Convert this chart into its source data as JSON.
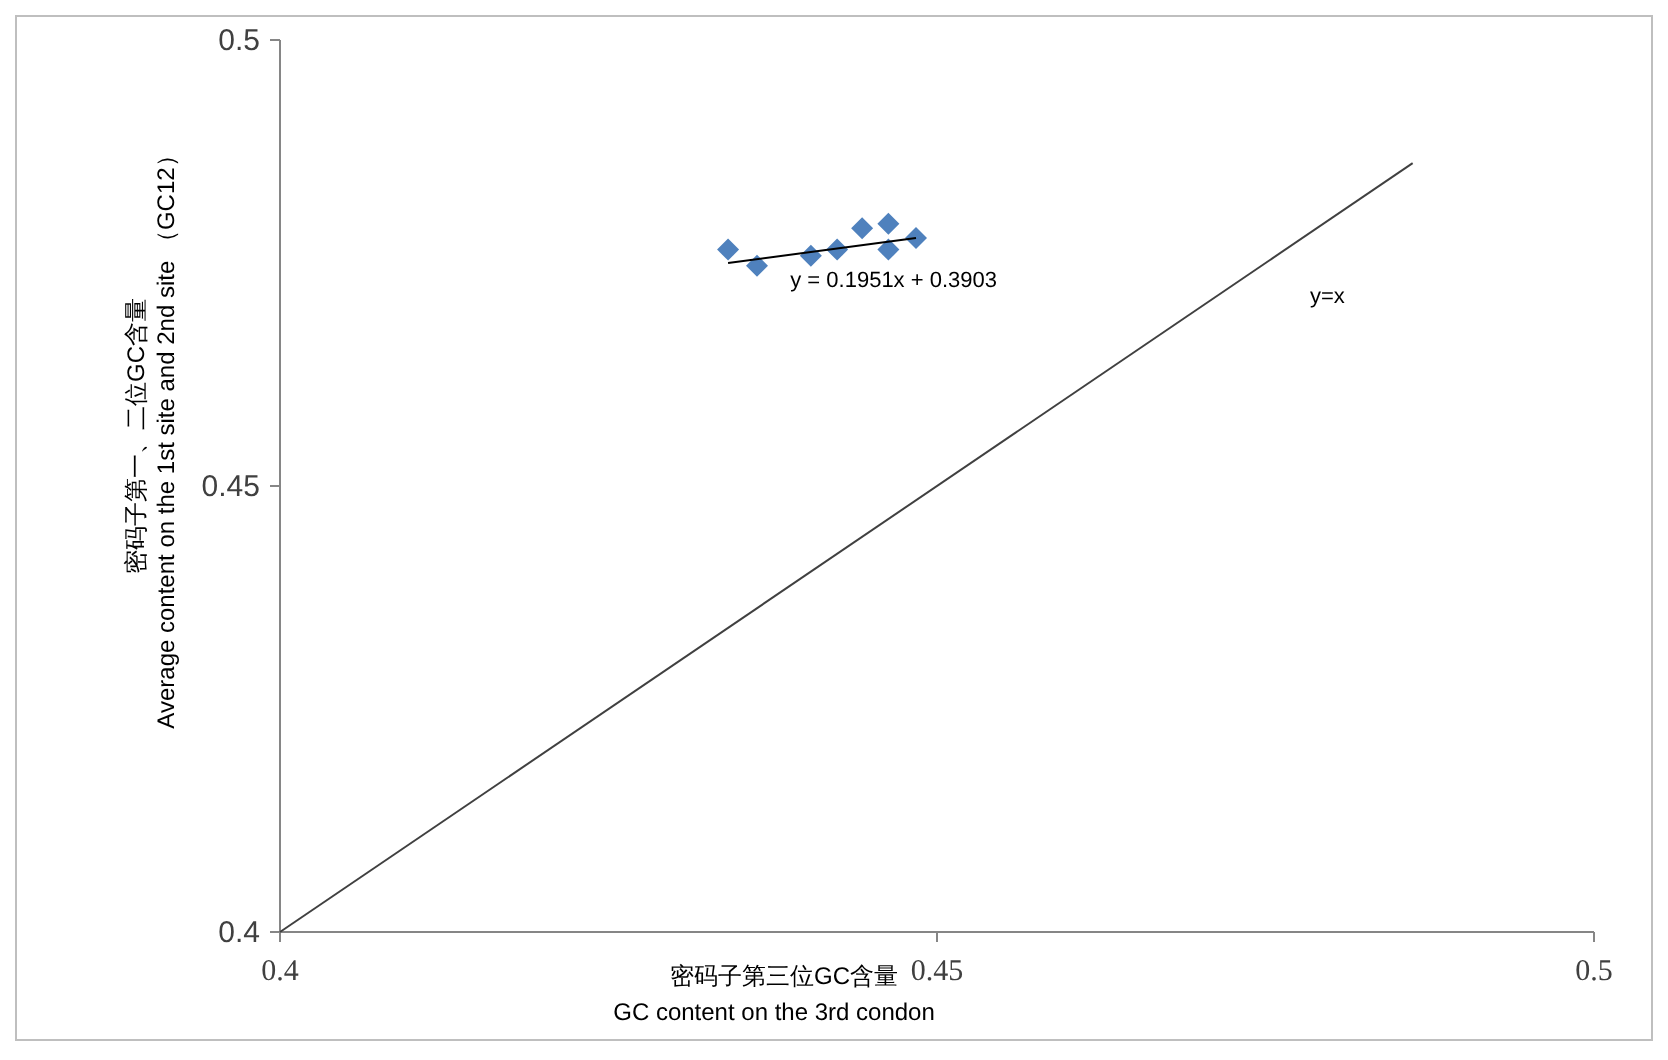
{
  "chart_data": {
    "type": "scatter",
    "xlabel": "密码子第三位GC含量\nGC content on the 3rd condon",
    "ylabel": "密码子第一、二位GC含量\nAverage content on the 1st site and 2nd site （GC12）",
    "xlim": [
      0.4,
      0.5
    ],
    "ylim": [
      0.4,
      0.5
    ],
    "xticks": [
      0.4,
      0.45,
      0.5
    ],
    "yticks": [
      0.4,
      0.45,
      0.5
    ],
    "grid": false,
    "series": [
      {
        "type": "scatter",
        "marker": "diamond",
        "color": "#4f81bd",
        "x": [
          0.4341,
          0.4363,
          0.4404,
          0.4424,
          0.4443,
          0.4463,
          0.4463,
          0.4484
        ],
        "values": [
          0.4765,
          0.4747,
          0.4758,
          0.4765,
          0.4789,
          0.4794,
          0.4765,
          0.4778
        ]
      },
      {
        "type": "line",
        "color": "#000000",
        "x": [
          0.4341,
          0.4484
        ],
        "values": [
          0.475,
          0.4778
        ]
      },
      {
        "type": "line",
        "color": "#404040",
        "x": [
          0.4,
          0.4862
        ],
        "values": [
          0.4,
          0.4862
        ]
      }
    ],
    "annotations": [
      {
        "text": "y = 0.1951x + 0.3903",
        "x": 0.4434,
        "y": 0.4768
      },
      {
        "text": "y=x",
        "x": 0.4799,
        "y": 0.4799
      }
    ]
  }
}
